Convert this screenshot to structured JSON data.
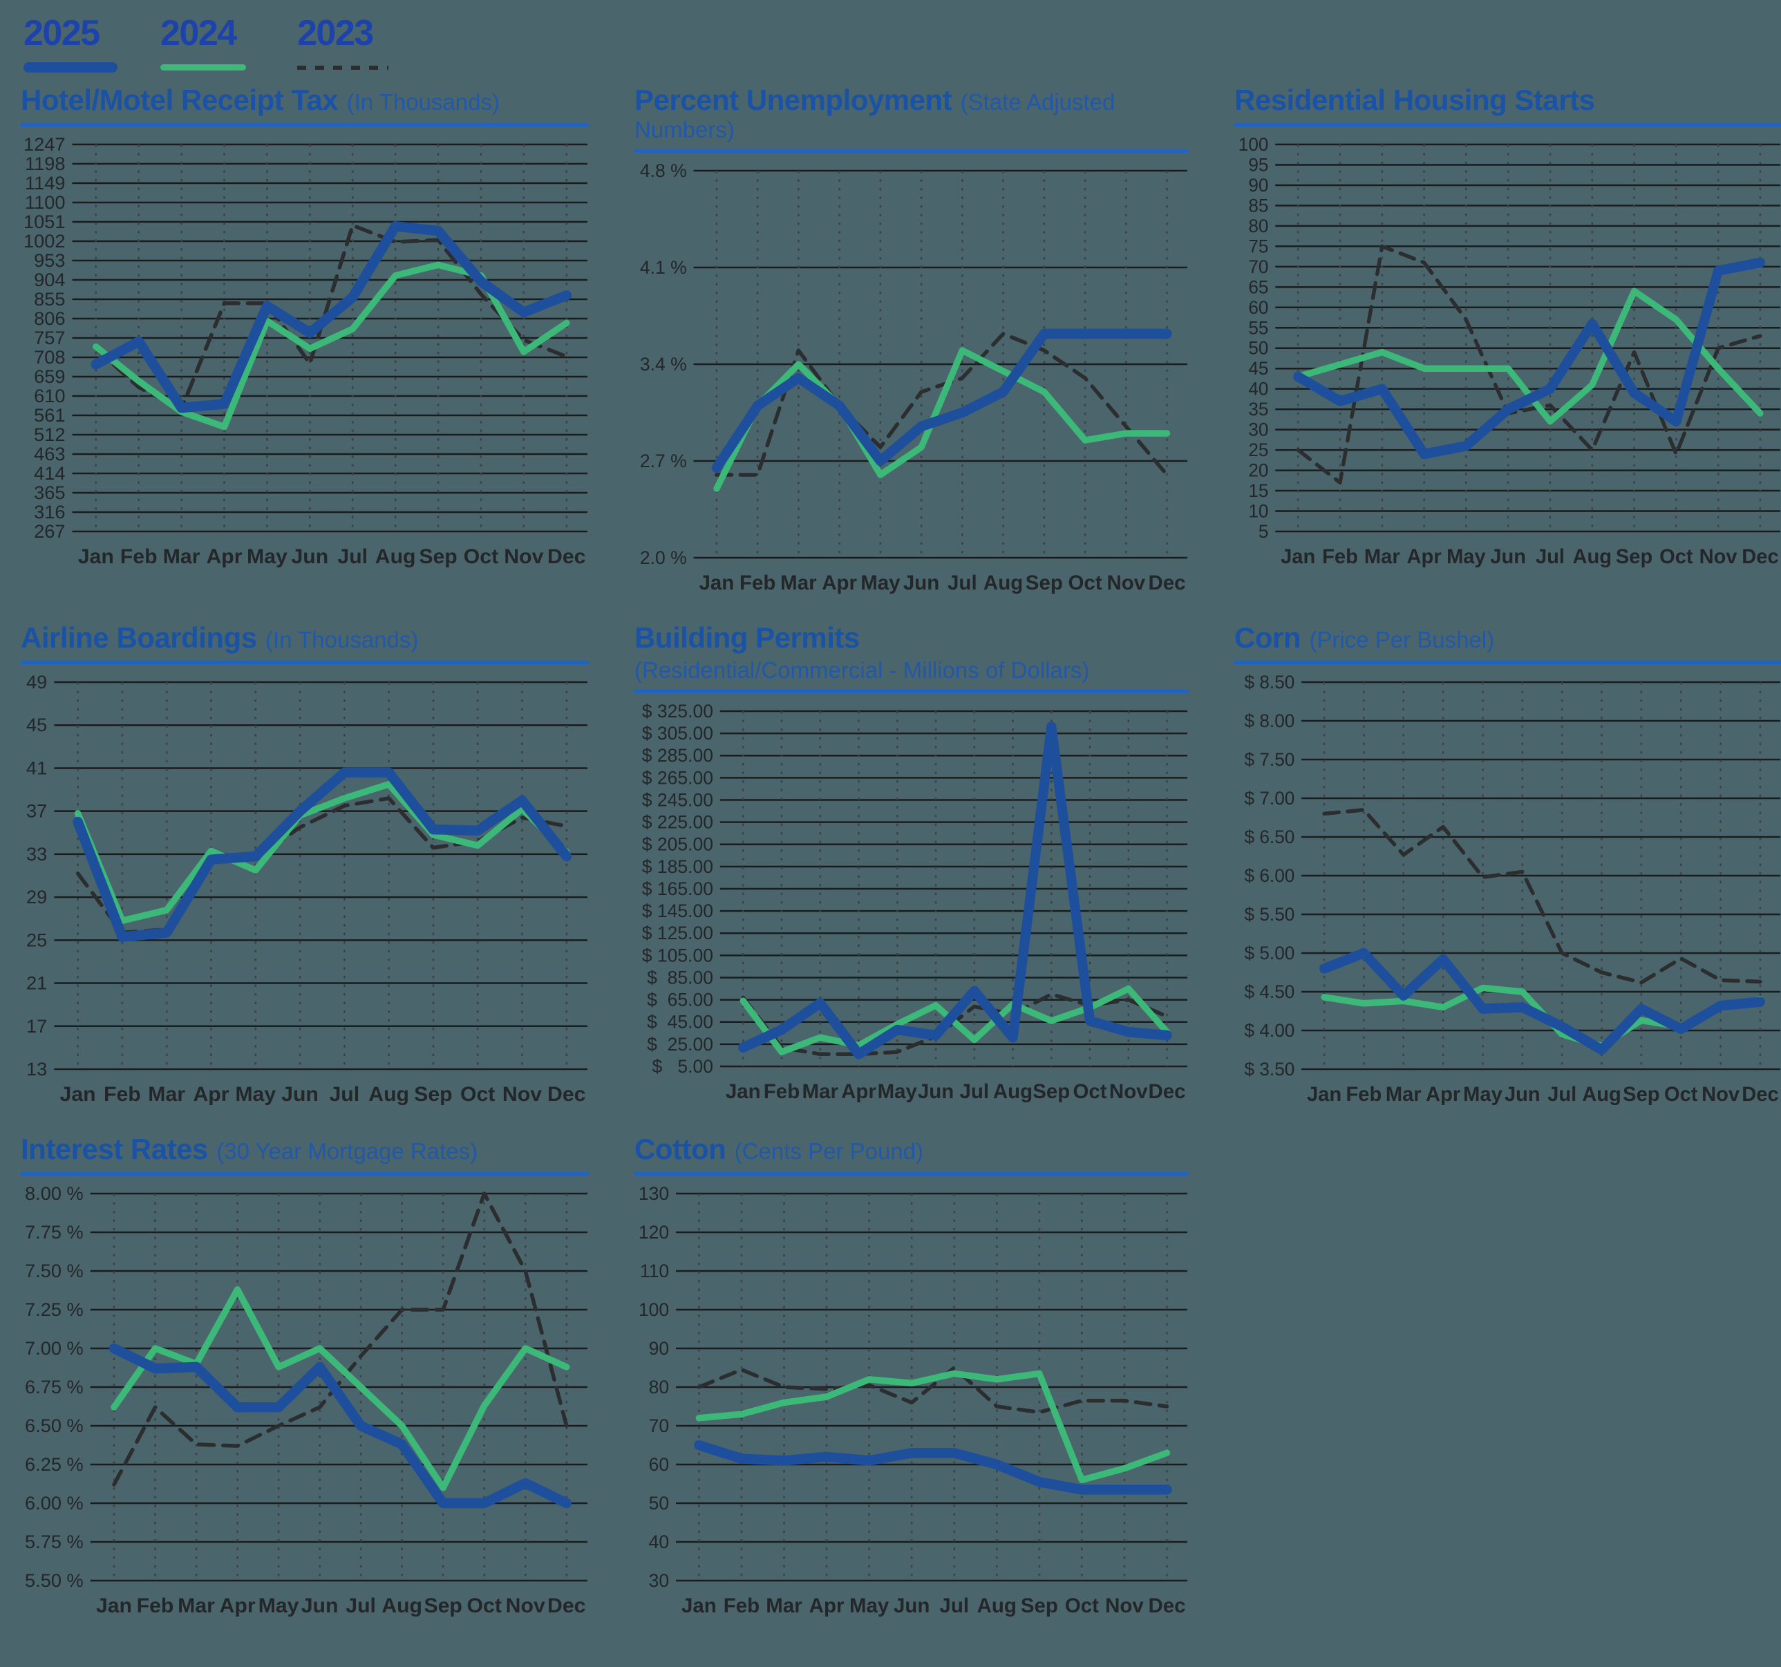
{
  "legend": {
    "items": [
      {
        "label": "2025",
        "color": "#1e4f9d",
        "line_style": "solid"
      },
      {
        "label": "2024",
        "color": "#3cb878",
        "line_style": "solid"
      },
      {
        "label": "2023",
        "color": "#2b2d2f",
        "line_style": "dashed"
      }
    ]
  },
  "months": [
    "Jan",
    "Feb",
    "Mar",
    "Apr",
    "May",
    "Jun",
    "Jul",
    "Aug",
    "Sep",
    "Oct",
    "Nov",
    "Dec"
  ],
  "colors": {
    "background": "#4a656c",
    "title_blue": "#1a52a5",
    "rule_blue": "#2063c0",
    "legend_blue": "#1c42ac",
    "series_2025": "#1e4f9d",
    "series_2024": "#3cb878",
    "series_2023": "#2b2d2f",
    "axis_text": "#24272a",
    "grid_line": "#1a1c1e",
    "dotted_line": "#3c4246"
  },
  "chart_data": [
    {
      "type": "line",
      "title": "Hotel/Motel Receipt Tax",
      "subtitle": "(In Thousands)",
      "ylim": [
        267,
        1247
      ],
      "y_ticks": [
        "1247",
        "1198",
        "1149",
        "1100",
        "1051",
        "1002",
        "953",
        "904",
        "855",
        "806",
        "757",
        "708",
        "659",
        "610",
        "561",
        "512",
        "463",
        "414",
        "365",
        "316",
        "267"
      ],
      "categories": [
        "Jan",
        "Feb",
        "Mar",
        "Apr",
        "May",
        "Jun",
        "Jul",
        "Aug",
        "Sep",
        "Oct",
        "Nov",
        "Dec"
      ],
      "series": [
        {
          "name": "2025",
          "values": [
            690,
            748,
            580,
            590,
            838,
            770,
            860,
            1040,
            1028,
            900,
            822,
            865
          ]
        },
        {
          "name": "2024",
          "values": [
            735,
            648,
            570,
            532,
            800,
            730,
            780,
            915,
            942,
            915,
            722,
            795
          ]
        },
        {
          "name": "2023",
          "values": [
            730,
            632,
            578,
            845,
            845,
            692,
            1042,
            1000,
            1005,
            868,
            752,
            710
          ]
        }
      ]
    },
    {
      "type": "line",
      "title": "Percent Unemployment",
      "subtitle": "(State Adjusted Numbers)",
      "ylim": [
        2.0,
        4.8
      ],
      "y_ticks": [
        "4.8 %",
        "4.1 %",
        "3.4 %",
        "2.7 %",
        "2.0 %"
      ],
      "categories": [
        "Jan",
        "Feb",
        "Mar",
        "Apr",
        "May",
        "Jun",
        "Jul",
        "Aug",
        "Sep",
        "Oct",
        "Nov",
        "Dec"
      ],
      "series": [
        {
          "name": "2025",
          "values": [
            2.65,
            3.1,
            3.3,
            3.1,
            2.7,
            2.95,
            3.05,
            3.2,
            3.62,
            3.62,
            3.62,
            3.62
          ]
        },
        {
          "name": "2024",
          "values": [
            2.5,
            3.1,
            3.4,
            3.1,
            2.6,
            2.8,
            3.5,
            3.35,
            3.2,
            2.85,
            2.9,
            2.9
          ]
        },
        {
          "name": "2023",
          "values": [
            2.6,
            2.6,
            3.5,
            3.1,
            2.8,
            3.2,
            3.3,
            3.62,
            3.5,
            3.3,
            2.95,
            2.6
          ]
        }
      ]
    },
    {
      "type": "line",
      "title": "Residential Housing Starts",
      "subtitle": "",
      "ylim": [
        5,
        100
      ],
      "y_ticks": [
        "100",
        "95",
        "90",
        "85",
        "80",
        "75",
        "70",
        "65",
        "60",
        "55",
        "50",
        "45",
        "40",
        "35",
        "30",
        "25",
        "20",
        "15",
        "10",
        "5"
      ],
      "categories": [
        "Jan",
        "Feb",
        "Mar",
        "Apr",
        "May",
        "Jun",
        "Jul",
        "Aug",
        "Sep",
        "Oct",
        "Nov",
        "Dec"
      ],
      "series": [
        {
          "name": "2025",
          "values": [
            43,
            37,
            40,
            24,
            26,
            35,
            40,
            56,
            39,
            32,
            69,
            71
          ]
        },
        {
          "name": "2024",
          "values": [
            43,
            46,
            49,
            45,
            45,
            45,
            32,
            41,
            64,
            57,
            45,
            34
          ]
        },
        {
          "name": "2023",
          "values": [
            25,
            17,
            75,
            71,
            57,
            34,
            36,
            25,
            49,
            24,
            50,
            53
          ]
        }
      ]
    },
    {
      "type": "line",
      "title": "Airline Boardings",
      "subtitle": "(In Thousands)",
      "ylim": [
        13,
        49
      ],
      "y_ticks": [
        "49",
        "45",
        "41",
        "37",
        "33",
        "29",
        "25",
        "21",
        "17",
        "13"
      ],
      "categories": [
        "Jan",
        "Feb",
        "Mar",
        "Apr",
        "May",
        "Jun",
        "Jul",
        "Aug",
        "Sep",
        "Oct",
        "Nov",
        "Dec"
      ],
      "series": [
        {
          "name": "2025",
          "values": [
            36,
            25.3,
            25.7,
            32.5,
            32.8,
            37,
            40.6,
            40.6,
            35.3,
            35.2,
            38,
            32.8
          ]
        },
        {
          "name": "2024",
          "values": [
            36.8,
            26.8,
            27.8,
            33.3,
            31.5,
            36.6,
            38.2,
            39.5,
            34.8,
            33.8,
            37.2,
            33.2
          ]
        },
        {
          "name": "2023",
          "values": [
            31.2,
            25.7,
            26,
            32.8,
            32.6,
            35.5,
            37.5,
            38.2,
            33.6,
            34.2,
            36.4,
            35.6
          ]
        }
      ]
    },
    {
      "type": "line",
      "title": "Building Permits",
      "subtitle": "(Residential/Commercial - Millions of Dollars)",
      "ylim": [
        5,
        325
      ],
      "y_ticks": [
        "$ 325.00",
        "$ 305.00",
        "$ 285.00",
        "$ 265.00",
        "$ 245.00",
        "$ 225.00",
        "$ 205.00",
        "$ 185.00",
        "$ 165.00",
        "$ 145.00",
        "$ 125.00",
        "$ 105.00",
        "$  85.00",
        "$  65.00",
        "$  45.00",
        "$  25.00",
        "$   5.00"
      ],
      "categories": [
        "Jan",
        "Feb",
        "Mar",
        "Apr",
        "May",
        "Jun",
        "Jul",
        "Aug",
        "Sep",
        "Oct",
        "Nov",
        "Dec"
      ],
      "series": [
        {
          "name": "2025",
          "values": [
            22,
            38,
            62,
            16,
            38,
            33,
            73,
            31,
            311,
            46,
            36,
            33
          ]
        },
        {
          "name": "2024",
          "values": [
            64,
            18,
            31,
            24,
            43,
            60,
            29,
            61,
            46,
            58,
            75,
            36
          ]
        },
        {
          "name": "2023",
          "values": [
            67,
            22,
            16,
            16,
            18,
            32,
            59,
            52,
            70,
            60,
            65,
            50
          ]
        }
      ]
    },
    {
      "type": "line",
      "title": "Corn",
      "subtitle": "(Price Per Bushel)",
      "ylim": [
        3.5,
        8.5
      ],
      "y_ticks": [
        "$ 8.50",
        "$ 8.00",
        "$ 7.50",
        "$ 7.00",
        "$ 6.50",
        "$ 6.00",
        "$ 5.50",
        "$ 5.00",
        "$ 4.50",
        "$ 4.00",
        "$ 3.50"
      ],
      "categories": [
        "Jan",
        "Feb",
        "Mar",
        "Apr",
        "May",
        "Jun",
        "Jul",
        "Aug",
        "Sep",
        "Oct",
        "Nov",
        "Dec"
      ],
      "series": [
        {
          "name": "2025",
          "values": [
            4.8,
            5.0,
            4.45,
            4.92,
            4.28,
            4.3,
            4.05,
            3.75,
            4.28,
            4.02,
            4.32,
            4.37
          ]
        },
        {
          "name": "2024",
          "values": [
            4.43,
            4.35,
            4.38,
            4.3,
            4.55,
            4.5,
            3.95,
            3.8,
            4.13,
            4.05,
            4.3,
            4.4
          ]
        },
        {
          "name": "2023",
          "values": [
            6.8,
            6.85,
            6.27,
            6.63,
            5.98,
            6.05,
            5.0,
            4.75,
            4.62,
            4.93,
            4.65,
            4.63
          ]
        }
      ]
    },
    {
      "type": "line",
      "title": "Interest Rates",
      "subtitle": "(30 Year Mortgage Rates)",
      "ylim": [
        5.5,
        8.0
      ],
      "y_ticks": [
        "8.00 %",
        "7.75 %",
        "7.50 %",
        "7.25 %",
        "7.00 %",
        "6.75 %",
        "6.50 %",
        "6.25 %",
        "6.00 %",
        "5.75 %",
        "5.50 %"
      ],
      "categories": [
        "Jan",
        "Feb",
        "Mar",
        "Apr",
        "May",
        "Jun",
        "Jul",
        "Aug",
        "Sep",
        "Oct",
        "Nov",
        "Dec"
      ],
      "series": [
        {
          "name": "2025",
          "values": [
            7.0,
            6.87,
            6.88,
            6.62,
            6.62,
            6.88,
            6.5,
            6.38,
            6.0,
            6.0,
            6.13,
            6.0
          ]
        },
        {
          "name": "2024",
          "values": [
            6.62,
            7.0,
            6.9,
            7.38,
            6.88,
            7.0,
            6.75,
            6.5,
            6.1,
            6.63,
            7.0,
            6.88
          ]
        },
        {
          "name": "2023",
          "values": [
            6.12,
            6.62,
            6.38,
            6.37,
            6.5,
            6.62,
            6.95,
            7.25,
            7.25,
            8.0,
            7.5,
            6.5
          ]
        }
      ]
    },
    {
      "type": "line",
      "title": "Cotton",
      "subtitle": "(Cents Per Pound)",
      "ylim": [
        30,
        130
      ],
      "y_ticks": [
        "130",
        "120",
        "110",
        "100",
        "90",
        "80",
        "70",
        "60",
        "50",
        "40",
        "30"
      ],
      "categories": [
        "Jan",
        "Feb",
        "Mar",
        "Apr",
        "May",
        "Jun",
        "Jul",
        "Aug",
        "Sep",
        "Oct",
        "Nov",
        "Dec"
      ],
      "series": [
        {
          "name": "2025",
          "values": [
            65,
            61.5,
            61,
            62,
            61,
            63,
            63,
            60,
            55.5,
            53.5,
            53.5,
            53.5
          ]
        },
        {
          "name": "2024",
          "values": [
            72,
            73,
            76,
            77.5,
            82,
            81,
            83.5,
            82,
            83.5,
            56,
            59,
            63
          ]
        },
        {
          "name": "2023",
          "values": [
            80,
            84.5,
            80,
            79.5,
            80.5,
            76,
            85,
            75,
            73.5,
            76.5,
            76.5,
            75
          ]
        }
      ]
    }
  ]
}
